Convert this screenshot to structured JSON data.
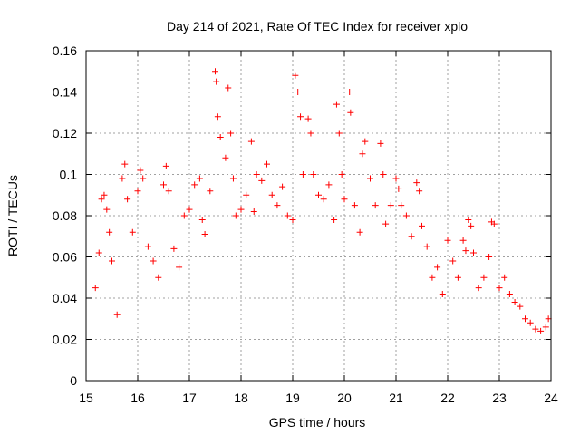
{
  "chart_data": {
    "type": "scatter",
    "title": "Day 214 of 2021, Rate Of TEC Index for receiver xplo",
    "xlabel": "GPS time / hours",
    "ylabel": "ROTI / TECUs",
    "xlim": [
      15,
      24
    ],
    "ylim": [
      0,
      0.16
    ],
    "x_ticks": [
      15,
      16,
      17,
      18,
      19,
      20,
      21,
      22,
      23,
      24
    ],
    "x_tick_labels": [
      "15",
      "16",
      "17",
      "18",
      "19",
      "20",
      "21",
      "22",
      "23",
      "24"
    ],
    "y_ticks": [
      0,
      0.02,
      0.04,
      0.06,
      0.08,
      0.1,
      0.12,
      0.14,
      0.16
    ],
    "y_tick_labels": [
      "0",
      "0.02",
      "0.04",
      "0.06",
      "0.08",
      "0.1",
      "0.12",
      "0.14",
      "0.16"
    ],
    "grid": true,
    "marker": "+",
    "series": [
      {
        "name": "ROTI",
        "color": "#ff0000",
        "points": [
          [
            15.18,
            0.045
          ],
          [
            15.25,
            0.062
          ],
          [
            15.3,
            0.088
          ],
          [
            15.35,
            0.09
          ],
          [
            15.4,
            0.083
          ],
          [
            15.45,
            0.072
          ],
          [
            15.5,
            0.058
          ],
          [
            15.6,
            0.032
          ],
          [
            15.7,
            0.098
          ],
          [
            15.75,
            0.105
          ],
          [
            15.8,
            0.088
          ],
          [
            15.9,
            0.072
          ],
          [
            16.0,
            0.092
          ],
          [
            16.05,
            0.102
          ],
          [
            16.1,
            0.098
          ],
          [
            16.2,
            0.065
          ],
          [
            16.3,
            0.058
          ],
          [
            16.4,
            0.05
          ],
          [
            16.5,
            0.095
          ],
          [
            16.55,
            0.104
          ],
          [
            16.6,
            0.092
          ],
          [
            16.7,
            0.064
          ],
          [
            16.8,
            0.055
          ],
          [
            16.9,
            0.08
          ],
          [
            17.0,
            0.083
          ],
          [
            17.1,
            0.095
          ],
          [
            17.2,
            0.098
          ],
          [
            17.25,
            0.078
          ],
          [
            17.3,
            0.071
          ],
          [
            17.4,
            0.092
          ],
          [
            17.5,
            0.15
          ],
          [
            17.52,
            0.145
          ],
          [
            17.55,
            0.128
          ],
          [
            17.6,
            0.118
          ],
          [
            17.7,
            0.108
          ],
          [
            17.75,
            0.142
          ],
          [
            17.8,
            0.12
          ],
          [
            17.85,
            0.098
          ],
          [
            17.9,
            0.08
          ],
          [
            18.0,
            0.083
          ],
          [
            18.1,
            0.09
          ],
          [
            18.2,
            0.116
          ],
          [
            18.25,
            0.082
          ],
          [
            18.3,
            0.1
          ],
          [
            18.4,
            0.097
          ],
          [
            18.5,
            0.105
          ],
          [
            18.6,
            0.09
          ],
          [
            18.7,
            0.085
          ],
          [
            18.8,
            0.094
          ],
          [
            18.9,
            0.08
          ],
          [
            19.0,
            0.078
          ],
          [
            19.05,
            0.148
          ],
          [
            19.1,
            0.14
          ],
          [
            19.15,
            0.128
          ],
          [
            19.2,
            0.1
          ],
          [
            19.3,
            0.127
          ],
          [
            19.35,
            0.12
          ],
          [
            19.4,
            0.1
          ],
          [
            19.5,
            0.09
          ],
          [
            19.6,
            0.088
          ],
          [
            19.7,
            0.095
          ],
          [
            19.8,
            0.078
          ],
          [
            19.85,
            0.134
          ],
          [
            19.9,
            0.12
          ],
          [
            19.95,
            0.1
          ],
          [
            20.0,
            0.088
          ],
          [
            20.1,
            0.14
          ],
          [
            20.12,
            0.13
          ],
          [
            20.2,
            0.085
          ],
          [
            20.3,
            0.072
          ],
          [
            20.35,
            0.11
          ],
          [
            20.4,
            0.116
          ],
          [
            20.5,
            0.098
          ],
          [
            20.6,
            0.085
          ],
          [
            20.7,
            0.115
          ],
          [
            20.75,
            0.1
          ],
          [
            20.8,
            0.076
          ],
          [
            20.9,
            0.085
          ],
          [
            21.0,
            0.098
          ],
          [
            21.05,
            0.093
          ],
          [
            21.1,
            0.085
          ],
          [
            21.2,
            0.08
          ],
          [
            21.3,
            0.07
          ],
          [
            21.4,
            0.096
          ],
          [
            21.45,
            0.092
          ],
          [
            21.5,
            0.075
          ],
          [
            21.6,
            0.065
          ],
          [
            21.7,
            0.05
          ],
          [
            21.8,
            0.055
          ],
          [
            21.9,
            0.042
          ],
          [
            22.0,
            0.068
          ],
          [
            22.1,
            0.058
          ],
          [
            22.2,
            0.05
          ],
          [
            22.3,
            0.068
          ],
          [
            22.35,
            0.063
          ],
          [
            22.4,
            0.078
          ],
          [
            22.45,
            0.075
          ],
          [
            22.5,
            0.062
          ],
          [
            22.6,
            0.045
          ],
          [
            22.7,
            0.05
          ],
          [
            22.8,
            0.06
          ],
          [
            22.85,
            0.077
          ],
          [
            22.9,
            0.076
          ],
          [
            23.0,
            0.045
          ],
          [
            23.1,
            0.05
          ],
          [
            23.2,
            0.042
          ],
          [
            23.3,
            0.038
          ],
          [
            23.4,
            0.036
          ],
          [
            23.5,
            0.03
          ],
          [
            23.6,
            0.028
          ],
          [
            23.7,
            0.025
          ],
          [
            23.8,
            0.024
          ],
          [
            23.9,
            0.026
          ],
          [
            23.95,
            0.03
          ]
        ]
      }
    ]
  }
}
